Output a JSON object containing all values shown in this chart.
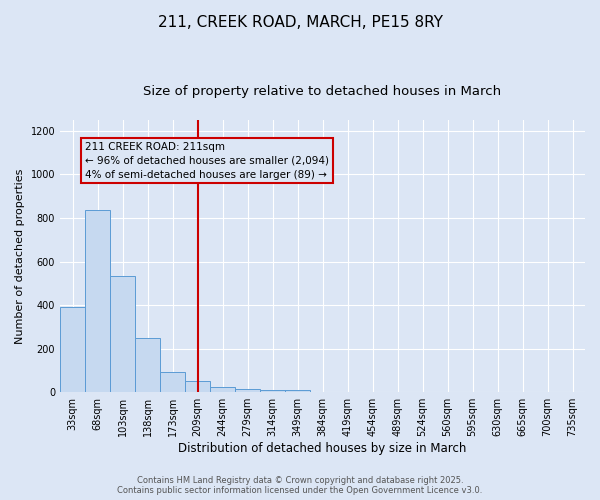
{
  "title": "211, CREEK ROAD, MARCH, PE15 8RY",
  "subtitle": "Size of property relative to detached houses in March",
  "xlabel": "Distribution of detached houses by size in March",
  "ylabel": "Number of detached properties",
  "categories": [
    "33sqm",
    "68sqm",
    "103sqm",
    "138sqm",
    "173sqm",
    "209sqm",
    "244sqm",
    "279sqm",
    "314sqm",
    "349sqm",
    "384sqm",
    "419sqm",
    "454sqm",
    "489sqm",
    "524sqm",
    "560sqm",
    "595sqm",
    "630sqm",
    "665sqm",
    "700sqm",
    "735sqm"
  ],
  "values": [
    390,
    835,
    535,
    248,
    95,
    50,
    25,
    15,
    10,
    8,
    0,
    0,
    0,
    0,
    0,
    0,
    0,
    0,
    0,
    0,
    0
  ],
  "bar_color": "#c6d9f0",
  "bar_edge_color": "#5b9bd5",
  "vline_x_index": 5,
  "vline_color": "#cc0000",
  "annotation_line1": "211 CREEK ROAD: 211sqm",
  "annotation_line2": "← 96% of detached houses are smaller (2,094)",
  "annotation_line3": "4% of semi-detached houses are larger (89) →",
  "annotation_box_color": "#cc0000",
  "ylim": [
    0,
    1250
  ],
  "yticks": [
    0,
    200,
    400,
    600,
    800,
    1000,
    1200
  ],
  "bg_color": "#dce6f5",
  "footer_line1": "Contains HM Land Registry data © Crown copyright and database right 2025.",
  "footer_line2": "Contains public sector information licensed under the Open Government Licence v3.0.",
  "title_fontsize": 11,
  "subtitle_fontsize": 9.5,
  "xlabel_fontsize": 8.5,
  "ylabel_fontsize": 8,
  "tick_fontsize": 7,
  "footer_fontsize": 6,
  "annot_fontsize": 7.5
}
